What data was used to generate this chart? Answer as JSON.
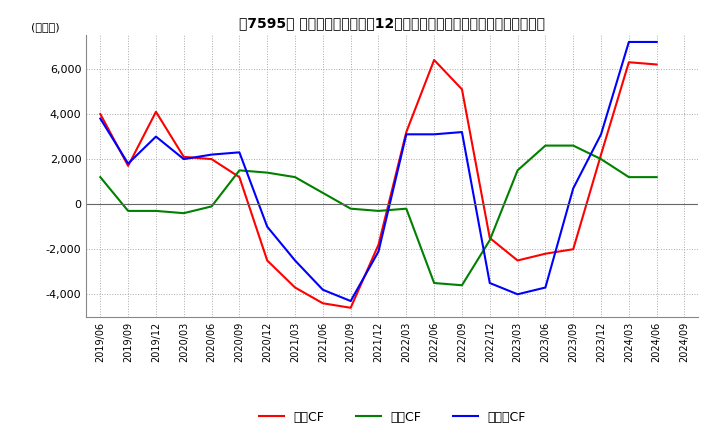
{
  "title": "【7595】 キャッシュフローの12か月移動合計の対前年同期増減額の推移",
  "ylabel": "(百万円)",
  "ylim": [
    -5000,
    7500
  ],
  "yticks": [
    -4000,
    -2000,
    0,
    2000,
    4000,
    6000
  ],
  "dates": [
    "2019/06",
    "2019/09",
    "2019/12",
    "2020/03",
    "2020/06",
    "2020/09",
    "2020/12",
    "2021/03",
    "2021/06",
    "2021/09",
    "2021/12",
    "2022/03",
    "2022/06",
    "2022/09",
    "2022/12",
    "2023/03",
    "2023/06",
    "2023/09",
    "2023/12",
    "2024/03",
    "2024/06",
    "2024/09"
  ],
  "eigyo_cf": [
    4000,
    1700,
    4100,
    2100,
    2000,
    1200,
    -2500,
    -3700,
    -4400,
    -4600,
    -1800,
    3200,
    6400,
    5100,
    -1500,
    -2500,
    -2200,
    -2000,
    2200,
    6300,
    6200,
    null
  ],
  "toshi_cf": [
    1200,
    -300,
    -300,
    -400,
    -100,
    1500,
    1400,
    1200,
    500,
    -200,
    -300,
    -200,
    -3500,
    -3600,
    -1600,
    1500,
    2600,
    2600,
    2000,
    1200,
    1200,
    null
  ],
  "free_cf": [
    3800,
    1800,
    3000,
    2000,
    2200,
    2300,
    -1000,
    -2500,
    -3800,
    -4300,
    -2100,
    3100,
    3100,
    3200,
    -3500,
    -4000,
    -3700,
    700,
    3100,
    7200,
    7200,
    null
  ],
  "eigyo_color": "#ff0000",
  "toshi_color": "#008000",
  "free_color": "#0000ff",
  "bg_color": "#ffffff",
  "grid_color": "#aaaaaa"
}
